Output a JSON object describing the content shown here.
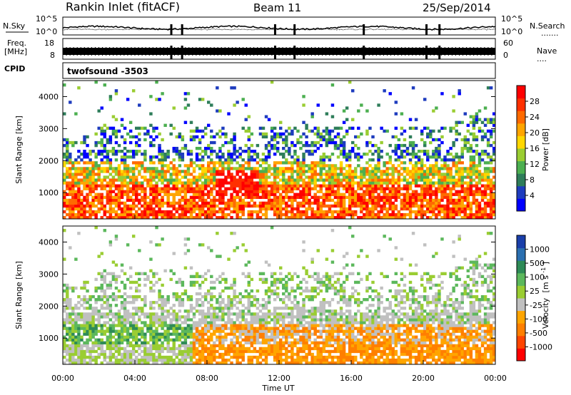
{
  "header": {
    "station": "Rankin Inlet (fitACF)",
    "beam": "Beam 11",
    "date": "25/Sep/2014"
  },
  "left_labels": {
    "nsky": "N.Sky",
    "freq": "Freq.",
    "mhz": "[MHz]",
    "cpid": "CPID"
  },
  "right_labels": {
    "nsearch": "N.Search",
    "nave": "Nave"
  },
  "nsky_axis": {
    "top": "10^5",
    "bottom": "10^0"
  },
  "nsearch_axis": {
    "top": "10^5",
    "bottom": "10^0"
  },
  "freq_axis": {
    "top": "18",
    "bottom": "8"
  },
  "nave_axis": {
    "top": "60",
    "bottom": "0"
  },
  "cpid_label": "twofsound  -3503",
  "colors": {
    "power": [
      "#0000ff",
      "#1e3cbe",
      "#2e7d5a",
      "#4caf50",
      "#9acd32",
      "#ffd700",
      "#ffa500",
      "#ff6a00",
      "#ff3000",
      "#ff0000"
    ],
    "velocity": [
      "#1a3faa",
      "#2a6fb0",
      "#2e8b57",
      "#5cb85c",
      "#9acd32",
      "#c0c0c0",
      "#ffa500",
      "#ff7f00",
      "#ff4500",
      "#ff0000"
    ]
  },
  "chart_data": [
    {
      "type": "heatmap",
      "name": "power",
      "xlabel": "",
      "ylabel": "Slant Range [km]",
      "yticks": [
        "1000",
        "2000",
        "3000",
        "4000"
      ],
      "colorbar_label": "Power [dB]",
      "colorbar_ticks": [
        "4",
        "8",
        "12",
        "16",
        "20",
        "24",
        "28"
      ],
      "ylim": [
        180,
        4500
      ]
    },
    {
      "type": "heatmap",
      "name": "velocity",
      "xlabel": "Time UT",
      "ylabel": "Slant Range [km]",
      "yticks": [
        "1000",
        "2000",
        "3000",
        "4000"
      ],
      "xticks": [
        "00:00",
        "04:00",
        "08:00",
        "12:00",
        "16:00",
        "20:00",
        "00:00"
      ],
      "colorbar_label": "Velocity",
      "colorbar_unit": "[m s",
      "colorbar_unit_sup": "-1",
      "colorbar_unit_end": "]",
      "colorbar_ticks": [
        "1000",
        "500",
        "100",
        "25",
        "-25",
        "-100",
        "-500",
        "-1000"
      ],
      "ylim": [
        180,
        4500
      ]
    }
  ]
}
